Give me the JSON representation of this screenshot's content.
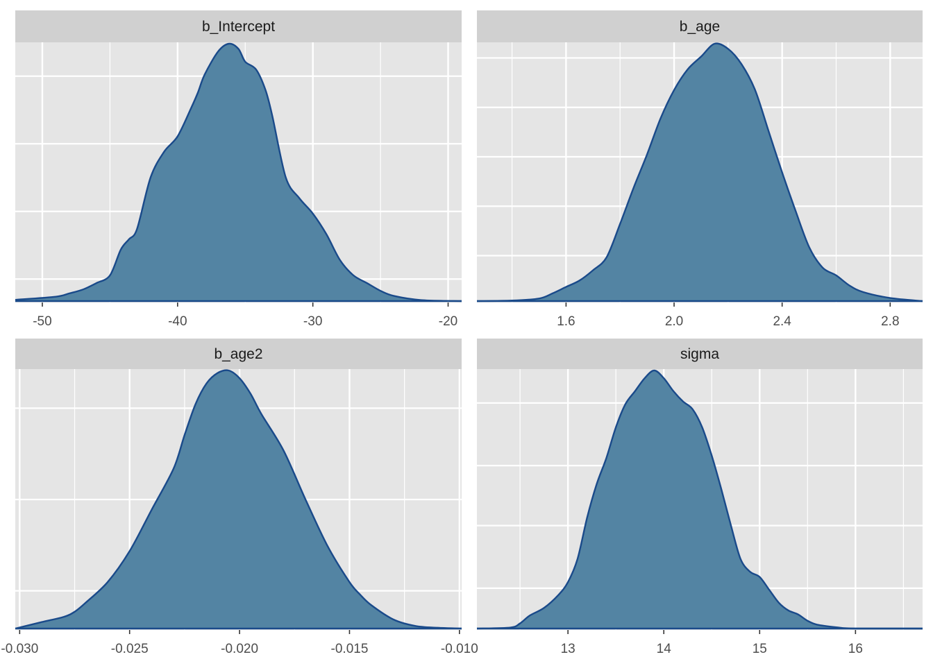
{
  "colors": {
    "panel_background": "#E5E5E5",
    "strip_background": "#D0D0D0",
    "grid": "#FFFFFF",
    "fill": "#5384A3",
    "line": "#1A4A8A",
    "tick_text": "#4D4D4D",
    "strip_text": "#1A1A1A"
  },
  "chart_data": [
    {
      "type": "area",
      "title": "b_Intercept",
      "xlim": [
        -52,
        -19
      ],
      "ylim": [
        0,
        1
      ],
      "xticks": [
        -50,
        -40,
        -30,
        -20
      ],
      "xtick_labels": [
        "-50",
        "-40",
        "-30",
        "-20"
      ],
      "y_grid_fractions": [
        0.13,
        0.39,
        0.65,
        0.91
      ],
      "grid": true,
      "x": [
        -52,
        -49,
        -48,
        -47,
        -46,
        -45,
        -44.2,
        -43.6,
        -43,
        -42,
        -41,
        -40,
        -39,
        -38.5,
        -38,
        -37,
        -36.2,
        -35.5,
        -35,
        -34.2,
        -33.5,
        -33,
        -32,
        -31,
        -30,
        -29,
        -28,
        -27,
        -26,
        -25,
        -24,
        -22,
        -19
      ],
      "y": [
        0.005,
        0.017,
        0.03,
        0.045,
        0.07,
        0.1,
        0.2,
        0.24,
        0.28,
        0.48,
        0.58,
        0.64,
        0.75,
        0.81,
        0.88,
        0.97,
        1.0,
        0.98,
        0.93,
        0.9,
        0.82,
        0.72,
        0.48,
        0.4,
        0.34,
        0.26,
        0.16,
        0.1,
        0.07,
        0.04,
        0.02,
        0.004,
        0.0
      ]
    },
    {
      "type": "area",
      "title": "b_age",
      "xlim": [
        1.27,
        2.92
      ],
      "ylim": [
        0,
        1
      ],
      "xticks": [
        1.6,
        2.0,
        2.4,
        2.8
      ],
      "xtick_labels": [
        "1.6",
        "2.0",
        "2.4",
        "2.8"
      ],
      "y_grid_fractions": [
        0.06,
        0.25,
        0.44,
        0.63,
        0.82
      ],
      "grid": true,
      "x": [
        1.27,
        1.4,
        1.5,
        1.55,
        1.6,
        1.65,
        1.7,
        1.75,
        1.8,
        1.85,
        1.9,
        1.95,
        2.0,
        2.05,
        2.1,
        2.15,
        2.2,
        2.25,
        2.3,
        2.35,
        2.4,
        2.45,
        2.5,
        2.55,
        2.6,
        2.65,
        2.7,
        2.8,
        2.92
      ],
      "y": [
        0.0,
        0.002,
        0.01,
        0.03,
        0.055,
        0.08,
        0.12,
        0.17,
        0.3,
        0.44,
        0.57,
        0.71,
        0.82,
        0.9,
        0.95,
        1.0,
        0.98,
        0.92,
        0.82,
        0.66,
        0.5,
        0.35,
        0.21,
        0.13,
        0.1,
        0.06,
        0.035,
        0.012,
        0.0
      ]
    },
    {
      "type": "area",
      "title": "b_age2",
      "xlim": [
        -0.0302,
        -0.0099
      ],
      "ylim": [
        0,
        1
      ],
      "xticks": [
        -0.03,
        -0.025,
        -0.02,
        -0.015,
        -0.01
      ],
      "xtick_labels": [
        "-0.030",
        "-0.025",
        "-0.020",
        "-0.015",
        "-0.010"
      ],
      "y_grid_fractions": [
        0.15,
        0.5,
        0.85
      ],
      "grid": true,
      "x": [
        -0.0302,
        -0.029,
        -0.028,
        -0.0275,
        -0.027,
        -0.026,
        -0.025,
        -0.024,
        -0.023,
        -0.0225,
        -0.022,
        -0.0215,
        -0.021,
        -0.0205,
        -0.02,
        -0.0195,
        -0.019,
        -0.018,
        -0.017,
        -0.016,
        -0.015,
        -0.0145,
        -0.014,
        -0.013,
        -0.012,
        -0.011,
        -0.0099
      ],
      "y": [
        0.0,
        0.025,
        0.045,
        0.065,
        0.1,
        0.18,
        0.3,
        0.46,
        0.62,
        0.75,
        0.87,
        0.95,
        0.99,
        1.0,
        0.97,
        0.91,
        0.83,
        0.69,
        0.5,
        0.32,
        0.18,
        0.13,
        0.09,
        0.035,
        0.01,
        0.003,
        0.0
      ]
    },
    {
      "type": "area",
      "title": "sigma",
      "xlim": [
        12.05,
        16.7
      ],
      "ylim": [
        0,
        1
      ],
      "xticks": [
        13,
        14,
        15,
        16
      ],
      "xtick_labels": [
        "13",
        "14",
        "15",
        "16"
      ],
      "y_grid_fractions": [
        0.13,
        0.37,
        0.6,
        0.84
      ],
      "grid": true,
      "x": [
        12.05,
        12.4,
        12.5,
        12.6,
        12.75,
        12.9,
        13.0,
        13.1,
        13.2,
        13.3,
        13.4,
        13.5,
        13.6,
        13.7,
        13.8,
        13.9,
        14.0,
        14.1,
        14.2,
        14.3,
        14.4,
        14.5,
        14.6,
        14.7,
        14.8,
        14.9,
        15.0,
        15.1,
        15.2,
        15.3,
        15.4,
        15.5,
        15.6,
        15.8,
        16.0,
        16.7
      ],
      "y": [
        0.0,
        0.004,
        0.02,
        0.05,
        0.08,
        0.13,
        0.18,
        0.27,
        0.43,
        0.56,
        0.66,
        0.78,
        0.87,
        0.92,
        0.97,
        1.0,
        0.97,
        0.92,
        0.88,
        0.85,
        0.78,
        0.67,
        0.54,
        0.4,
        0.27,
        0.22,
        0.2,
        0.15,
        0.1,
        0.07,
        0.055,
        0.03,
        0.015,
        0.005,
        0.0,
        0.0
      ]
    }
  ]
}
